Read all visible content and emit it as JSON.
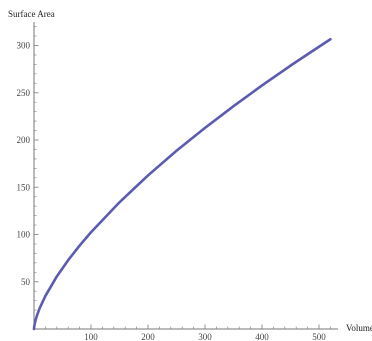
{
  "chart_data": {
    "type": "line",
    "title": "",
    "xlabel": "Volume",
    "ylabel": "Surface Area",
    "xlim": [
      0,
      540
    ],
    "ylim": [
      0,
      330
    ],
    "x_ticks": [
      100,
      200,
      300,
      400,
      500
    ],
    "y_ticks": [
      50,
      100,
      150,
      200,
      250,
      300
    ],
    "grid": false,
    "legend": "none",
    "line_color": "#5B5BAF",
    "series": [
      {
        "x": [
          0,
          0.5,
          2,
          5,
          10,
          20,
          40,
          60,
          80,
          100,
          150,
          200,
          250,
          300,
          350,
          400,
          450,
          500,
          520
        ],
        "values": [
          0,
          3.0,
          7.6,
          14.0,
          22.1,
          35.0,
          55.6,
          72.9,
          88.3,
          102.4,
          134.1,
          162.5,
          188.6,
          212.8,
          235.8,
          257.7,
          278.7,
          298.7,
          306.6
        ]
      }
    ]
  }
}
